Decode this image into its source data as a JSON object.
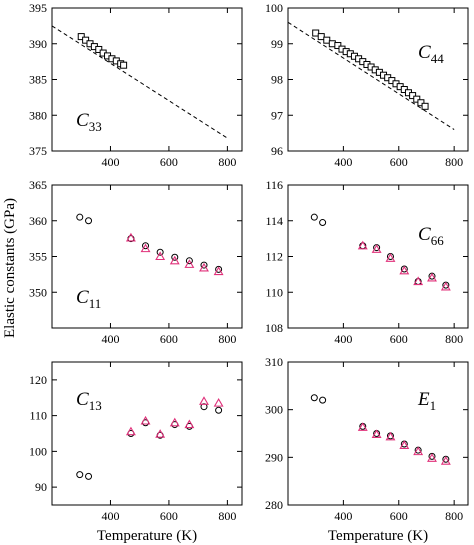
{
  "figure": {
    "ylabel": "Elastic constants (GPa)",
    "xlabel": "Temperature (K)"
  },
  "chart_data": [
    {
      "id": "c33",
      "type": "scatter",
      "label_main": "C",
      "label_sub": "33",
      "xlim": [
        200,
        850
      ],
      "ylim": [
        375,
        395
      ],
      "xticks": [
        400,
        600,
        800
      ],
      "yticks": [
        375,
        380,
        385,
        390,
        395
      ],
      "show_x_tick_labels": true,
      "show_x_title": false,
      "colors": {
        "black": "#000000",
        "magenta": "#e0307a"
      },
      "series": [
        {
          "kind": "square",
          "color": "black",
          "x": [
            300,
            315,
            330,
            345,
            360,
            375,
            390,
            405,
            420,
            435,
            445
          ],
          "y": [
            391.0,
            390.5,
            390.0,
            389.6,
            389.2,
            388.7,
            388.3,
            387.9,
            387.6,
            387.2,
            387.0
          ]
        },
        {
          "kind": "dashed",
          "color": "black",
          "x": [
            200,
            800
          ],
          "y": [
            392.5,
            376.8
          ]
        }
      ]
    },
    {
      "id": "c44",
      "type": "scatter",
      "label_main": "C",
      "label_sub": "44",
      "xlim": [
        200,
        850
      ],
      "ylim": [
        96,
        100
      ],
      "xticks": [
        400,
        600,
        800
      ],
      "yticks": [
        96,
        97,
        98,
        99,
        100
      ],
      "show_x_tick_labels": true,
      "show_x_title": false,
      "colors": {
        "black": "#000000",
        "magenta": "#e0307a"
      },
      "series": [
        {
          "kind": "square",
          "color": "black",
          "x": [
            300,
            320,
            340,
            360,
            380,
            395,
            410,
            425,
            440,
            455,
            470,
            485,
            500,
            515,
            530,
            545,
            560,
            575,
            590,
            605,
            620,
            635,
            650,
            665,
            680,
            695
          ],
          "y": [
            99.3,
            99.2,
            99.1,
            99.0,
            98.95,
            98.85,
            98.78,
            98.72,
            98.65,
            98.58,
            98.5,
            98.42,
            98.35,
            98.27,
            98.2,
            98.12,
            98.05,
            97.97,
            97.88,
            97.8,
            97.72,
            97.63,
            97.55,
            97.45,
            97.35,
            97.25
          ]
        },
        {
          "kind": "dashed",
          "color": "black",
          "x": [
            200,
            800
          ],
          "y": [
            99.6,
            96.6
          ]
        }
      ]
    },
    {
      "id": "c11",
      "type": "scatter",
      "label_main": "C",
      "label_sub": "11",
      "xlim": [
        200,
        850
      ],
      "ylim": [
        345,
        365
      ],
      "xticks": [
        400,
        600,
        800
      ],
      "yticks": [
        350,
        355,
        360,
        365
      ],
      "show_x_tick_labels": true,
      "show_x_title": false,
      "colors": {
        "black": "#000000",
        "magenta": "#e0307a"
      },
      "series": [
        {
          "kind": "circle",
          "color": "black",
          "x": [
            295,
            325,
            470,
            520,
            570,
            620,
            670,
            720,
            770
          ],
          "y": [
            360.5,
            360.0,
            357.5,
            356.5,
            355.6,
            354.9,
            354.4,
            353.8,
            353.2
          ]
        },
        {
          "kind": "triangle",
          "color": "magenta",
          "x": [
            470,
            520,
            570,
            620,
            670,
            720,
            770
          ],
          "y": [
            357.6,
            356.1,
            355.0,
            354.4,
            353.9,
            353.4,
            352.9
          ]
        }
      ]
    },
    {
      "id": "c66",
      "type": "scatter",
      "label_main": "C",
      "label_sub": "66",
      "xlim": [
        200,
        850
      ],
      "ylim": [
        108,
        116
      ],
      "xticks": [
        400,
        600,
        800
      ],
      "yticks": [
        108,
        110,
        112,
        114,
        116
      ],
      "show_x_tick_labels": true,
      "show_x_title": false,
      "colors": {
        "black": "#000000",
        "magenta": "#e0307a"
      },
      "series": [
        {
          "kind": "circle",
          "color": "black",
          "x": [
            295,
            325,
            470,
            520,
            570,
            620,
            670,
            720,
            770
          ],
          "y": [
            114.2,
            113.9,
            112.6,
            112.5,
            112.0,
            111.3,
            110.6,
            110.9,
            110.4
          ]
        },
        {
          "kind": "triangle",
          "color": "magenta",
          "x": [
            470,
            520,
            570,
            620,
            670,
            720,
            770
          ],
          "y": [
            112.6,
            112.4,
            111.9,
            111.2,
            110.6,
            110.8,
            110.3
          ]
        }
      ]
    },
    {
      "id": "c13",
      "type": "scatter",
      "label_main": "C",
      "label_sub": "13",
      "xlim": [
        200,
        850
      ],
      "ylim": [
        85,
        125
      ],
      "xticks": [
        400,
        600,
        800
      ],
      "yticks": [
        90,
        100,
        110,
        120
      ],
      "show_x_tick_labels": true,
      "show_x_title": true,
      "colors": {
        "black": "#000000",
        "magenta": "#e0307a"
      },
      "series": [
        {
          "kind": "circle",
          "color": "black",
          "x": [
            295,
            325,
            470,
            520,
            570,
            620,
            670,
            720,
            770
          ],
          "y": [
            93.5,
            93.0,
            105.0,
            108.0,
            104.5,
            107.5,
            107.0,
            112.5,
            111.5
          ]
        },
        {
          "kind": "triangle",
          "color": "magenta",
          "x": [
            470,
            520,
            570,
            620,
            670,
            720,
            770
          ],
          "y": [
            105.5,
            108.5,
            104.8,
            108.0,
            107.5,
            114.0,
            113.5
          ]
        }
      ]
    },
    {
      "id": "e1",
      "type": "scatter",
      "label_main": "E",
      "label_sub": "1",
      "xlim": [
        200,
        850
      ],
      "ylim": [
        280,
        310
      ],
      "xticks": [
        400,
        600,
        800
      ],
      "yticks": [
        280,
        290,
        300,
        310
      ],
      "show_x_tick_labels": true,
      "show_x_title": true,
      "colors": {
        "black": "#000000",
        "magenta": "#e0307a"
      },
      "series": [
        {
          "kind": "circle",
          "color": "black",
          "x": [
            295,
            325,
            470,
            520,
            570,
            620,
            670,
            720,
            770
          ],
          "y": [
            302.5,
            302.0,
            296.5,
            295.0,
            294.5,
            292.8,
            291.5,
            290.2,
            289.6
          ]
        },
        {
          "kind": "triangle",
          "color": "magenta",
          "x": [
            470,
            520,
            570,
            620,
            670,
            720,
            770
          ],
          "y": [
            296.3,
            294.8,
            294.3,
            292.5,
            291.2,
            289.8,
            289.2
          ]
        }
      ]
    }
  ]
}
